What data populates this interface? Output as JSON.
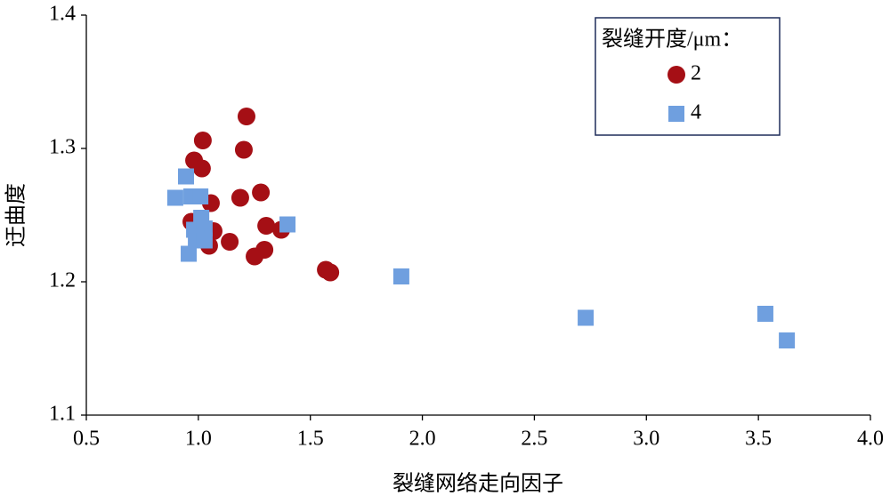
{
  "chart_data": {
    "type": "scatter",
    "x_label": "裂缝网络走向因子",
    "y_label": "迂曲度",
    "legend_title": "裂缝开度/μm：",
    "legend_position": "upper right",
    "xlim": [
      0.5,
      4.0
    ],
    "xticks": [
      0.5,
      {
        "value": 1,
        "label": "1.0"
      },
      1.5,
      {
        "value": 2,
        "label": "2.0"
      },
      2.5,
      {
        "value": 3,
        "label": "3.0"
      },
      3.5,
      {
        "value": 4,
        "label": "4.0"
      }
    ],
    "ylim": [
      1.1,
      1.4
    ],
    "yticks": [
      1.1,
      1.2,
      1.3,
      1.4
    ],
    "series": [
      {
        "name": "2",
        "color": "#a50f15",
        "marker": "circle",
        "x": [
          0.981,
          1.02,
          1.016,
          1.215,
          1.203,
          1.187,
          1.279,
          1.056,
          0.969,
          1.068,
          1.048,
          1.14,
          1.303,
          1.37,
          1.295,
          1.251,
          1.569,
          1.589
        ],
        "values": [
          1.291,
          1.306,
          1.285,
          1.324,
          1.299,
          1.263,
          1.267,
          1.259,
          1.245,
          1.238,
          1.227,
          1.23,
          1.242,
          1.239,
          1.224,
          1.219,
          1.209,
          1.207
        ]
      },
      {
        "name": "4",
        "color": "#6f9fdf",
        "marker": "square",
        "x": [
          0.945,
          0.897,
          0.969,
          1.009,
          1.013,
          0.981,
          1.028,
          0.989,
          1.028,
          0.957,
          1.398,
          1.906,
          2.729,
          3.531,
          3.627
        ],
        "values": [
          1.279,
          1.263,
          1.264,
          1.264,
          1.248,
          1.239,
          1.24,
          1.233,
          1.231,
          1.221,
          1.243,
          1.204,
          1.173,
          1.176,
          1.156
        ]
      }
    ]
  }
}
